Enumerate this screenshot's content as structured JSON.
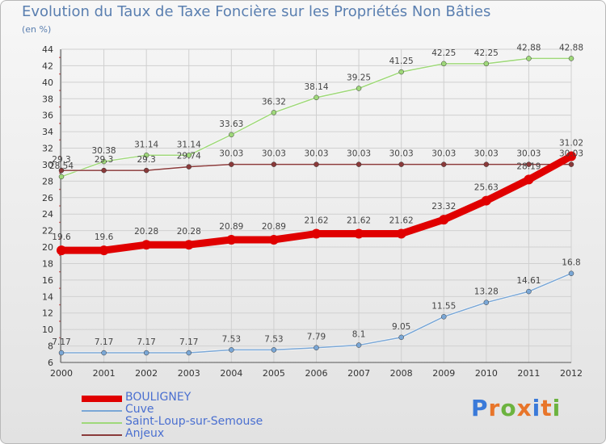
{
  "title": "Evolution du Taux de Taxe Foncière sur les Propriétés Non Bâties",
  "subtitle": "(en %)",
  "logo": {
    "letters": [
      "P",
      "r",
      "o",
      "x",
      "i",
      "t",
      "i"
    ],
    "colors": [
      "#3a7ad9",
      "#e8752a",
      "#6cb33f",
      "#e8752a",
      "#3a7ad9",
      "#e8752a",
      "#6cb33f"
    ]
  },
  "chart_data": {
    "type": "line",
    "x": [
      "2000",
      "2001",
      "2002",
      "2003",
      "2004",
      "2005",
      "2006",
      "2007",
      "2008",
      "2009",
      "2010",
      "2011",
      "2012"
    ],
    "ylim": [
      6,
      44
    ],
    "yticks": [
      6,
      8,
      10,
      12,
      14,
      16,
      18,
      20,
      22,
      24,
      26,
      28,
      30,
      32,
      34,
      36,
      38,
      40,
      42,
      44
    ],
    "grid": true,
    "legend_position": "bottom-left",
    "series": [
      {
        "name": "BOULIGNEY",
        "color": "#e00000",
        "width": 9,
        "values": [
          19.6,
          19.6,
          20.28,
          20.28,
          20.89,
          20.89,
          21.62,
          21.62,
          21.62,
          23.32,
          25.63,
          28.19,
          31.02
        ],
        "labels": [
          "19.6",
          "19.6",
          "20.28",
          "20.28",
          "20.89",
          "20.89",
          "21.62",
          "21.62",
          "21.62",
          "23.32",
          "25.63",
          "28.19",
          "31.02"
        ]
      },
      {
        "name": "Cuve",
        "color": "#7aa7d6",
        "width": 1.5,
        "values": [
          7.17,
          7.17,
          7.17,
          7.17,
          7.53,
          7.53,
          7.79,
          8.1,
          9.05,
          11.55,
          13.28,
          14.61,
          16.8
        ],
        "labels": [
          "7.17",
          "7.17",
          "7.17",
          "7.17",
          "7.53",
          "7.53",
          "7.79",
          "8.1",
          "9.05",
          "11.55",
          "13.28",
          "14.61",
          "16.8"
        ]
      },
      {
        "name": "Saint-Loup-sur-Semouse",
        "color": "#9fd87a",
        "width": 1.5,
        "values": [
          28.54,
          30.38,
          31.14,
          31.14,
          33.63,
          36.32,
          38.14,
          39.25,
          41.25,
          42.25,
          42.25,
          42.88,
          42.88
        ],
        "labels": [
          "28.54",
          "30.38",
          "31.14",
          "31.14",
          "33.63",
          "36.32",
          "38.14",
          "39.25",
          "41.25",
          "42.25",
          "42.25",
          "42.88",
          "42.88"
        ]
      },
      {
        "name": "Anjeux",
        "color": "#8a3a3a",
        "width": 1.5,
        "values": [
          29.3,
          29.3,
          29.3,
          29.74,
          30.03,
          30.03,
          30.03,
          30.03,
          30.03,
          30.03,
          30.03,
          30.03,
          30.03
        ],
        "labels": [
          "29.3",
          "29.3",
          "29.3",
          "29.74",
          "30.03",
          "30.03",
          "30.03",
          "30.03",
          "30.03",
          "30.03",
          "30.03",
          "30.03",
          "30.03"
        ]
      }
    ]
  }
}
